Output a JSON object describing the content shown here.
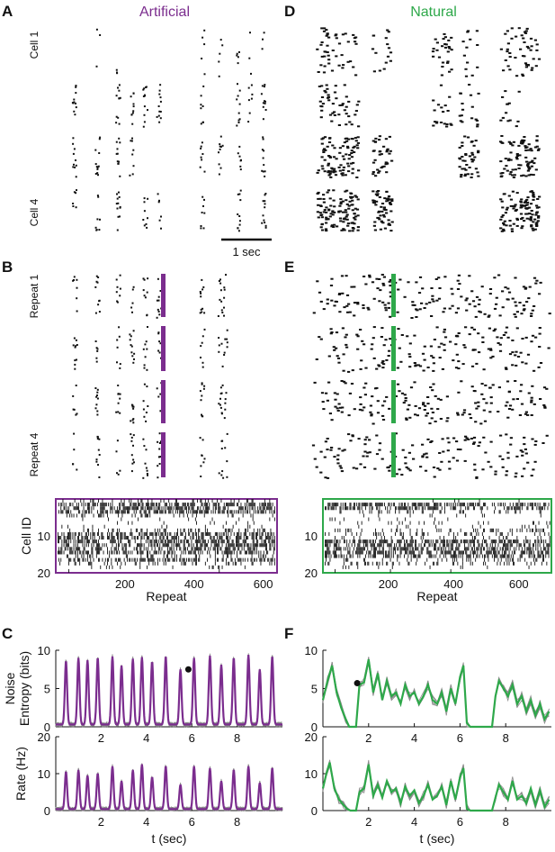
{
  "colors": {
    "artificial": "#7b2d8e",
    "natural": "#2ea84a",
    "text": "#111111"
  },
  "panels": {
    "A": "A",
    "B": "B",
    "C": "C",
    "D": "D",
    "E": "E",
    "F": "F"
  },
  "column_titles": {
    "artificial": "Artificial",
    "natural": "Natural"
  },
  "raster_labels": {
    "cell_first": "Cell 1",
    "cell_last": "Cell 4",
    "repeat_first": "Repeat 1",
    "repeat_last": "Repeat 4",
    "scale_bar": "1 sec"
  },
  "chart_data": [
    {
      "type": "scatter",
      "panel": "A",
      "title": "Artificial",
      "rows": [
        "Cell 1",
        "",
        "",
        "Cell 4"
      ],
      "scale_bar": "1 sec"
    },
    {
      "type": "scatter",
      "panel": "D",
      "title": "Natural",
      "rows": [
        "",
        "",
        "",
        ""
      ]
    },
    {
      "type": "scatter",
      "panel": "B",
      "rows": [
        "Repeat 1",
        "",
        "",
        "Repeat 4"
      ]
    },
    {
      "type": "scatter",
      "panel": "E",
      "rows": [
        "",
        "",
        "",
        ""
      ]
    },
    {
      "type": "heatmap",
      "panel": "B",
      "xlabel": "Repeat",
      "ylabel": "Cell ID",
      "xlim": [
        0,
        640
      ],
      "ylim": [
        0,
        20
      ],
      "xticks": [
        200,
        400,
        600
      ],
      "yticks": [
        10,
        20
      ],
      "dense_rows": [
        2,
        3,
        4,
        10,
        11,
        12,
        13,
        14,
        15,
        17
      ],
      "medium_rows": [
        1,
        5,
        9,
        16,
        18
      ],
      "sparse_rows": [
        6,
        7,
        8,
        19
      ]
    },
    {
      "type": "heatmap",
      "panel": "E",
      "xlabel": "Repeat",
      "xlim": [
        0,
        700
      ],
      "ylim": [
        0,
        20
      ],
      "xticks": [
        200,
        400,
        600
      ],
      "yticks": [
        10,
        20
      ],
      "dense_rows": [
        2,
        3,
        12,
        13,
        14,
        15,
        16
      ],
      "medium_rows": [
        4,
        9,
        10,
        11,
        17,
        18
      ],
      "sparse_rows": [
        5,
        6,
        7,
        8,
        19
      ]
    },
    {
      "type": "line",
      "panel": "C",
      "ylabel": "Noise Entropy (bits)",
      "xlim": [
        0,
        10
      ],
      "ylim": [
        0,
        10
      ],
      "xticks": [
        2,
        4,
        6,
        8
      ],
      "yticks": [
        0,
        5,
        10
      ],
      "baseline": 0.3,
      "peaks": [
        [
          0.45,
          8.6
        ],
        [
          1.0,
          9.0
        ],
        [
          1.4,
          8.7
        ],
        [
          1.85,
          9.0
        ],
        [
          2.5,
          9.2
        ],
        [
          2.9,
          8.0
        ],
        [
          3.4,
          8.9
        ],
        [
          3.8,
          9.1
        ],
        [
          4.25,
          8.5
        ],
        [
          4.85,
          9.2
        ],
        [
          5.5,
          7.5
        ],
        [
          6.1,
          9.0
        ],
        [
          6.8,
          9.3
        ],
        [
          7.3,
          8.1
        ],
        [
          7.85,
          9.0
        ],
        [
          8.5,
          9.4
        ],
        [
          9.0,
          7.5
        ],
        [
          9.55,
          9.2
        ]
      ],
      "marker": [
        5.85,
        7.5
      ]
    },
    {
      "type": "line",
      "panel": "F",
      "xlim": [
        0,
        10
      ],
      "ylim": [
        0,
        10
      ],
      "xticks": [
        2,
        4,
        6,
        8
      ],
      "yticks": [
        0,
        5,
        10
      ],
      "x": [
        0,
        0.2,
        0.4,
        0.6,
        0.8,
        1.0,
        1.15,
        1.3,
        1.45,
        1.6,
        1.8,
        2.0,
        2.2,
        2.4,
        2.6,
        2.8,
        3.0,
        3.2,
        3.4,
        3.6,
        3.8,
        4.0,
        4.2,
        4.4,
        4.6,
        4.8,
        5.0,
        5.2,
        5.4,
        5.6,
        5.8,
        6.0,
        6.15,
        6.3,
        6.45,
        6.6,
        7.0,
        7.4,
        7.55,
        7.7,
        7.9,
        8.1,
        8.3,
        8.5,
        8.7,
        8.9,
        9.1,
        9.3,
        9.5,
        9.7,
        9.9
      ],
      "y": [
        3.5,
        6.0,
        8.0,
        4.5,
        2.5,
        1.0,
        0.0,
        0.0,
        0.0,
        5.5,
        5.8,
        8.8,
        4.5,
        7.0,
        3.5,
        6.0,
        4.0,
        4.5,
        3.0,
        5.5,
        4.0,
        4.5,
        3.0,
        4.0,
        5.5,
        3.5,
        3.0,
        4.5,
        2.0,
        5.0,
        3.0,
        6.5,
        8.0,
        0.5,
        0.0,
        0.0,
        0.0,
        0.0,
        4.0,
        6.0,
        5.0,
        4.0,
        5.5,
        3.0,
        4.0,
        2.0,
        3.5,
        1.5,
        3.0,
        1.0,
        2.0
      ],
      "marker": [
        1.5,
        5.7
      ]
    },
    {
      "type": "line",
      "panel": "C",
      "ylabel": "Rate (Hz)",
      "xlabel": "t (sec)",
      "xlim": [
        0,
        10
      ],
      "ylim": [
        0,
        20
      ],
      "xticks": [
        2,
        4,
        6,
        8
      ],
      "yticks": [
        0,
        10,
        20
      ],
      "baseline": 0.4,
      "peaks": [
        [
          0.45,
          10.5
        ],
        [
          1.0,
          11.0
        ],
        [
          1.4,
          9.5
        ],
        [
          1.85,
          10.0
        ],
        [
          2.5,
          12.0
        ],
        [
          2.9,
          8.0
        ],
        [
          3.4,
          11.0
        ],
        [
          3.8,
          12.5
        ],
        [
          4.25,
          9.0
        ],
        [
          4.85,
          12.0
        ],
        [
          5.5,
          7.0
        ],
        [
          6.1,
          12.0
        ],
        [
          6.8,
          11.5
        ],
        [
          7.3,
          8.0
        ],
        [
          7.85,
          11.0
        ],
        [
          8.5,
          12.0
        ],
        [
          9.0,
          7.5
        ],
        [
          9.55,
          11.5
        ]
      ]
    },
    {
      "type": "line",
      "panel": "F",
      "xlabel": "t (sec)",
      "xlim": [
        0,
        10
      ],
      "ylim": [
        0,
        20
      ],
      "xticks": [
        2,
        4,
        6,
        8
      ],
      "yticks": [
        0,
        10,
        20
      ],
      "x": [
        0,
        0.15,
        0.3,
        0.5,
        0.7,
        0.9,
        1.05,
        1.2,
        1.45,
        1.6,
        1.8,
        2.0,
        2.2,
        2.4,
        2.6,
        2.8,
        3.0,
        3.2,
        3.4,
        3.6,
        3.8,
        4.0,
        4.2,
        4.4,
        4.6,
        4.8,
        5.0,
        5.2,
        5.4,
        5.6,
        5.8,
        6.0,
        6.15,
        6.3,
        6.45,
        6.6,
        7.0,
        7.4,
        7.55,
        7.7,
        7.9,
        8.1,
        8.3,
        8.5,
        8.7,
        8.9,
        9.1,
        9.3,
        9.5,
        9.7,
        9.9
      ],
      "y": [
        6.0,
        10.0,
        13.0,
        6.0,
        3.0,
        1.5,
        0.5,
        0.0,
        0.0,
        5.0,
        6.0,
        12.5,
        4.0,
        7.0,
        3.5,
        8.0,
        5.0,
        6.0,
        2.0,
        6.5,
        4.0,
        5.5,
        2.0,
        4.0,
        7.0,
        3.0,
        4.0,
        6.5,
        1.5,
        8.0,
        3.0,
        9.0,
        11.5,
        0.5,
        0.0,
        0.0,
        0.0,
        0.0,
        3.5,
        7.0,
        5.0,
        3.0,
        8.0,
        3.0,
        4.0,
        2.0,
        6.0,
        1.5,
        5.5,
        1.0,
        3.0
      ]
    }
  ]
}
